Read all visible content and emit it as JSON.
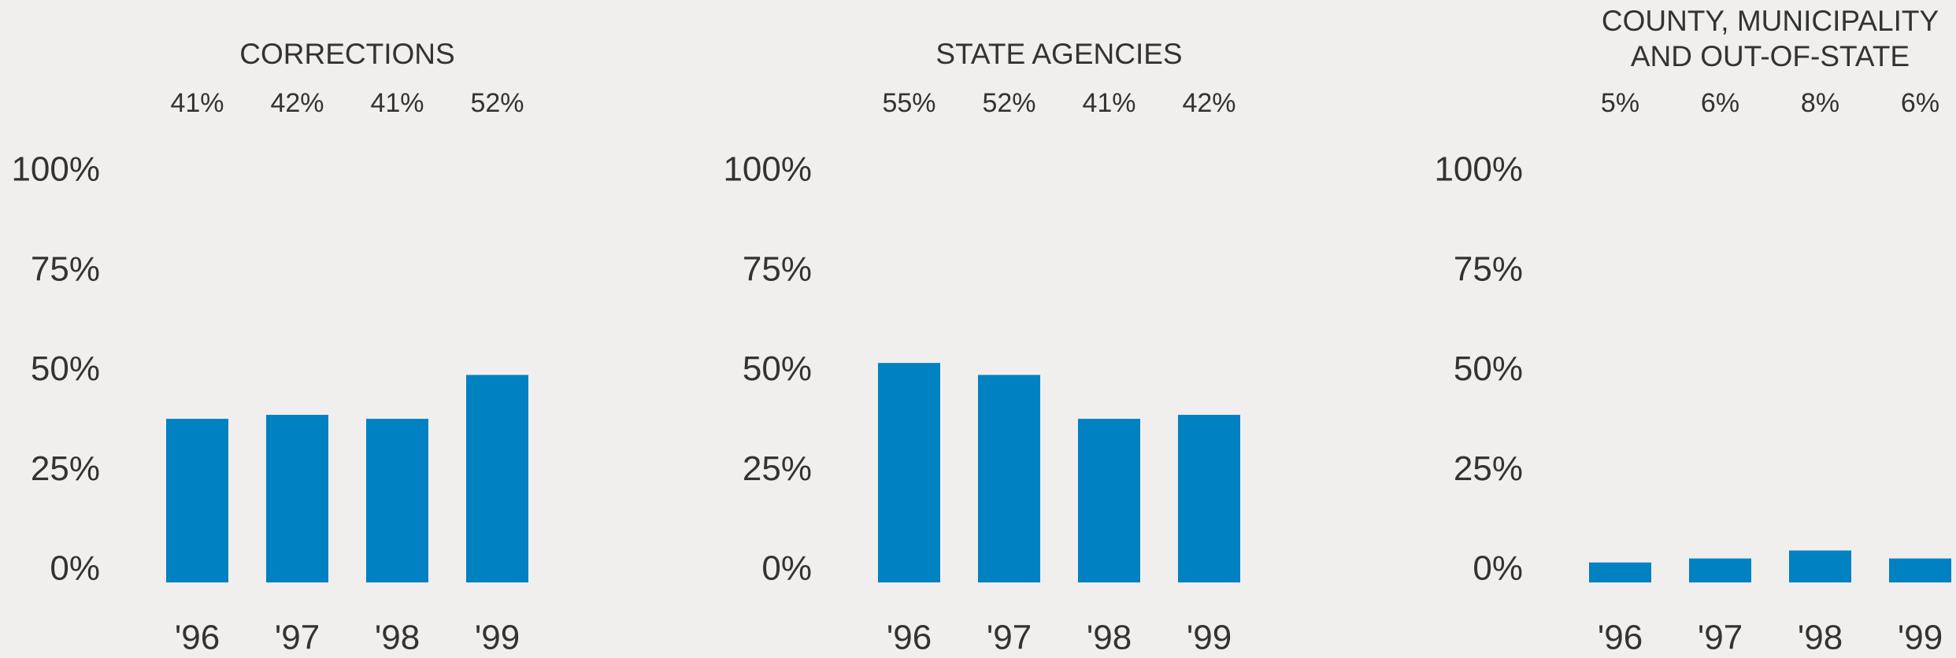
{
  "chart_data": [
    {
      "type": "bar",
      "title": [
        "CORRECTIONS"
      ],
      "categories": [
        "'96",
        "'97",
        "'98",
        "'99"
      ],
      "values": [
        41,
        42,
        41,
        52
      ],
      "value_labels": [
        "41%",
        "42%",
        "41%",
        "52%"
      ],
      "color": "#0081c2",
      "ylim": [
        0,
        100
      ],
      "yticks": [
        {
          "value": 0,
          "label": "0%"
        },
        {
          "value": 25,
          "label": "25%"
        },
        {
          "value": 50,
          "label": "50%"
        },
        {
          "value": 75,
          "label": "75%"
        },
        {
          "value": 100,
          "label": "100%"
        }
      ]
    },
    {
      "type": "bar",
      "title": [
        "STATE AGENCIES"
      ],
      "categories": [
        "'96",
        "'97",
        "'98",
        "'99"
      ],
      "values": [
        55,
        52,
        41,
        42
      ],
      "value_labels": [
        "55%",
        "52%",
        "41%",
        "42%"
      ],
      "color": "#0081c2",
      "ylim": [
        0,
        100
      ],
      "yticks": [
        {
          "value": 0,
          "label": "0%"
        },
        {
          "value": 25,
          "label": "25%"
        },
        {
          "value": 50,
          "label": "50%"
        },
        {
          "value": 75,
          "label": "75%"
        },
        {
          "value": 100,
          "label": "100%"
        }
      ]
    },
    {
      "type": "bar",
      "title": [
        "COUNTY, MUNICIPALITY",
        "AND OUT-OF-STATE"
      ],
      "categories": [
        "'96",
        "'97",
        "'98",
        "'99"
      ],
      "values": [
        5,
        6,
        8,
        6
      ],
      "value_labels": [
        "5%",
        "6%",
        "8%",
        "6%"
      ],
      "color": "#0081c2",
      "ylim": [
        0,
        100
      ],
      "yticks": [
        {
          "value": 0,
          "label": "0%"
        },
        {
          "value": 25,
          "label": "25%"
        },
        {
          "value": 50,
          "label": "50%"
        },
        {
          "value": 75,
          "label": "75%"
        },
        {
          "value": 100,
          "label": "100%"
        }
      ]
    }
  ]
}
